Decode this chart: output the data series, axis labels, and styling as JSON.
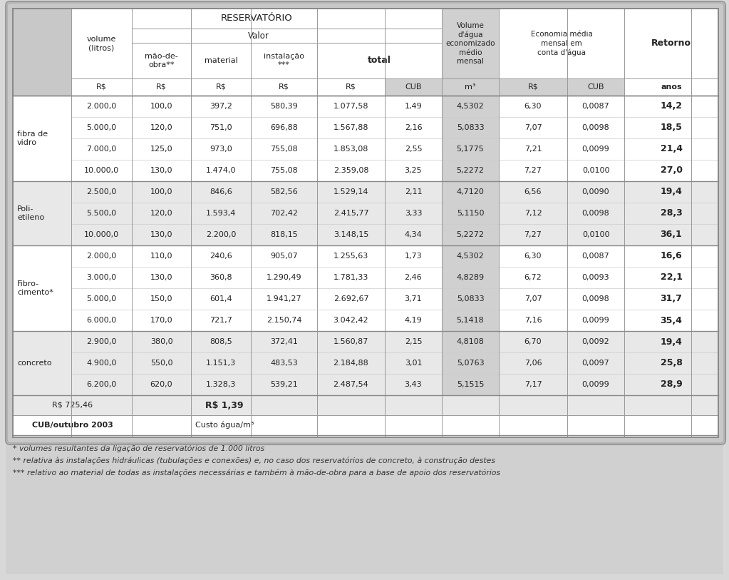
{
  "row_groups": [
    {
      "label": "fibra de\nvidro",
      "rows": [
        [
          "2.000,0",
          "100,0",
          "397,2",
          "580,39",
          "1.077,58",
          "1,49",
          "4,5302",
          "6,30",
          "0,0087",
          "14,2"
        ],
        [
          "5.000,0",
          "120,0",
          "751,0",
          "696,88",
          "1.567,88",
          "2,16",
          "5,0833",
          "7,07",
          "0,0098",
          "18,5"
        ],
        [
          "7.000,0",
          "125,0",
          "973,0",
          "755,08",
          "1.853,08",
          "2,55",
          "5,1775",
          "7,21",
          "0,0099",
          "21,4"
        ],
        [
          "10.000,0",
          "130,0",
          "1.474,0",
          "755,08",
          "2.359,08",
          "3,25",
          "5,2272",
          "7,27",
          "0,0100",
          "27,0"
        ]
      ]
    },
    {
      "label": "Poli-\netileno",
      "rows": [
        [
          "2.500,0",
          "100,0",
          "846,6",
          "582,56",
          "1.529,14",
          "2,11",
          "4,7120",
          "6,56",
          "0,0090",
          "19,4"
        ],
        [
          "5.500,0",
          "120,0",
          "1.593,4",
          "702,42",
          "2.415,77",
          "3,33",
          "5,1150",
          "7,12",
          "0,0098",
          "28,3"
        ],
        [
          "10.000,0",
          "130,0",
          "2.200,0",
          "818,15",
          "3.148,15",
          "4,34",
          "5,2272",
          "7,27",
          "0,0100",
          "36,1"
        ]
      ]
    },
    {
      "label": "Fibro-\ncimento*",
      "rows": [
        [
          "2.000,0",
          "110,0",
          "240,6",
          "905,07",
          "1.255,63",
          "1,73",
          "4,5302",
          "6,30",
          "0,0087",
          "16,6"
        ],
        [
          "3.000,0",
          "130,0",
          "360,8",
          "1.290,49",
          "1.781,33",
          "2,46",
          "4,8289",
          "6,72",
          "0,0093",
          "22,1"
        ],
        [
          "5.000,0",
          "150,0",
          "601,4",
          "1.941,27",
          "2.692,67",
          "3,71",
          "5,0833",
          "7,07",
          "0,0098",
          "31,7"
        ],
        [
          "6.000,0",
          "170,0",
          "721,7",
          "2.150,74",
          "3.042,42",
          "4,19",
          "5,1418",
          "7,16",
          "0,0099",
          "35,4"
        ]
      ]
    },
    {
      "label": "concreto",
      "rows": [
        [
          "2.900,0",
          "380,0",
          "808,5",
          "372,41",
          "1.560,87",
          "2,15",
          "4,8108",
          "6,70",
          "0,0092",
          "19,4"
        ],
        [
          "4.900,0",
          "550,0",
          "1.151,3",
          "483,53",
          "2.184,88",
          "3,01",
          "5,0763",
          "7,06",
          "0,0097",
          "25,8"
        ],
        [
          "6.200,0",
          "620,0",
          "1.328,3",
          "539,21",
          "2.487,54",
          "3,43",
          "5,1515",
          "7,17",
          "0,0099",
          "28,9"
        ]
      ]
    }
  ],
  "footer_rows": [
    [
      "R$ 725,46",
      "R$ 1,39"
    ],
    [
      "CUB/outubro 2003",
      "Custo água/m³"
    ]
  ],
  "footnotes": [
    "* volumes resultantes da ligação de reservatórios de 1.000 litros",
    "** relativa às instalações hidráulicas (tubulações e conexões) e, no caso dos reservatórios de concreto, à construção destes",
    "*** relativo ao material de todas as instalações necessárias e também à mão-de-obra para a base de apoio dos reservatórios"
  ],
  "c_white": "#ffffff",
  "c_light": "#e8e8e8",
  "c_gray": "#d0d0d0",
  "c_outer": "#c8c8c8",
  "c_border": "#aaaaaa",
  "c_text": "#222222"
}
